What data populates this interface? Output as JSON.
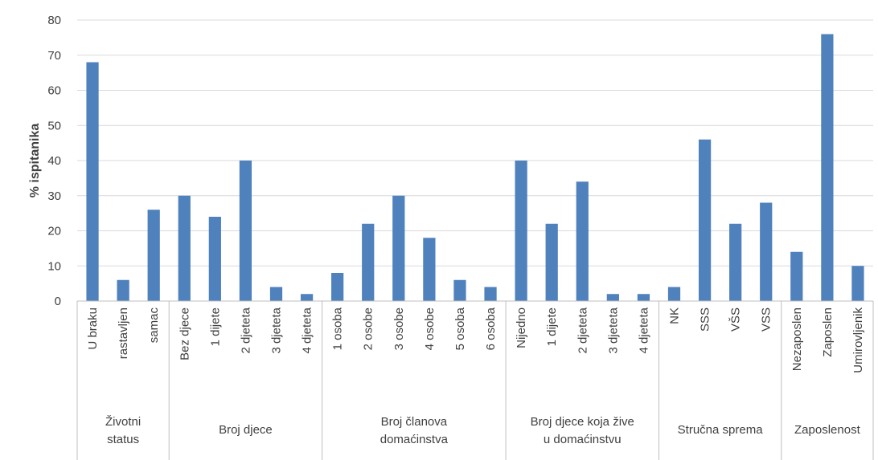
{
  "chart_data": {
    "type": "bar",
    "title": "",
    "ylabel": "% ispitanika",
    "ylim": [
      0,
      80
    ],
    "yticks": [
      0,
      10,
      20,
      30,
      40,
      50,
      60,
      70,
      80
    ],
    "grid": true,
    "legend": "none",
    "bar_color": "#4f81bd",
    "groups": [
      {
        "label": [
          "Životni",
          "status"
        ],
        "categories": [
          "U braku",
          "rastavljen",
          "samac"
        ],
        "values": [
          68,
          6,
          26
        ]
      },
      {
        "label": [
          "Broj djece"
        ],
        "categories": [
          "Bez djece",
          "1 dijete",
          "2 djeteta",
          "3 djeteta",
          "4 djeteta"
        ],
        "values": [
          30,
          24,
          40,
          4,
          2
        ]
      },
      {
        "label": [
          "Broj članova",
          "domaćinstva"
        ],
        "categories": [
          "1 osoba",
          "2 osobe",
          "3 osobe",
          "4 osobe",
          "5 osoba",
          "6 osoba"
        ],
        "values": [
          8,
          22,
          30,
          18,
          6,
          4
        ]
      },
      {
        "label": [
          "Broj djece koja žive",
          "u domaćinstvu"
        ],
        "categories": [
          "Nijedno",
          "1 dijete",
          "2 djeteta",
          "3 djeteta",
          "4 djeteta"
        ],
        "values": [
          40,
          22,
          34,
          2,
          2
        ]
      },
      {
        "label": [
          "Stručna sprema"
        ],
        "categories": [
          "NK",
          "SSS",
          "VŠS",
          "VSS"
        ],
        "values": [
          4,
          46,
          22,
          28
        ]
      },
      {
        "label": [
          "Zaposlenost"
        ],
        "categories": [
          "Nezaposlen",
          "Zaposlen",
          "Umirovljenik"
        ],
        "values": [
          14,
          76,
          10
        ]
      }
    ]
  }
}
